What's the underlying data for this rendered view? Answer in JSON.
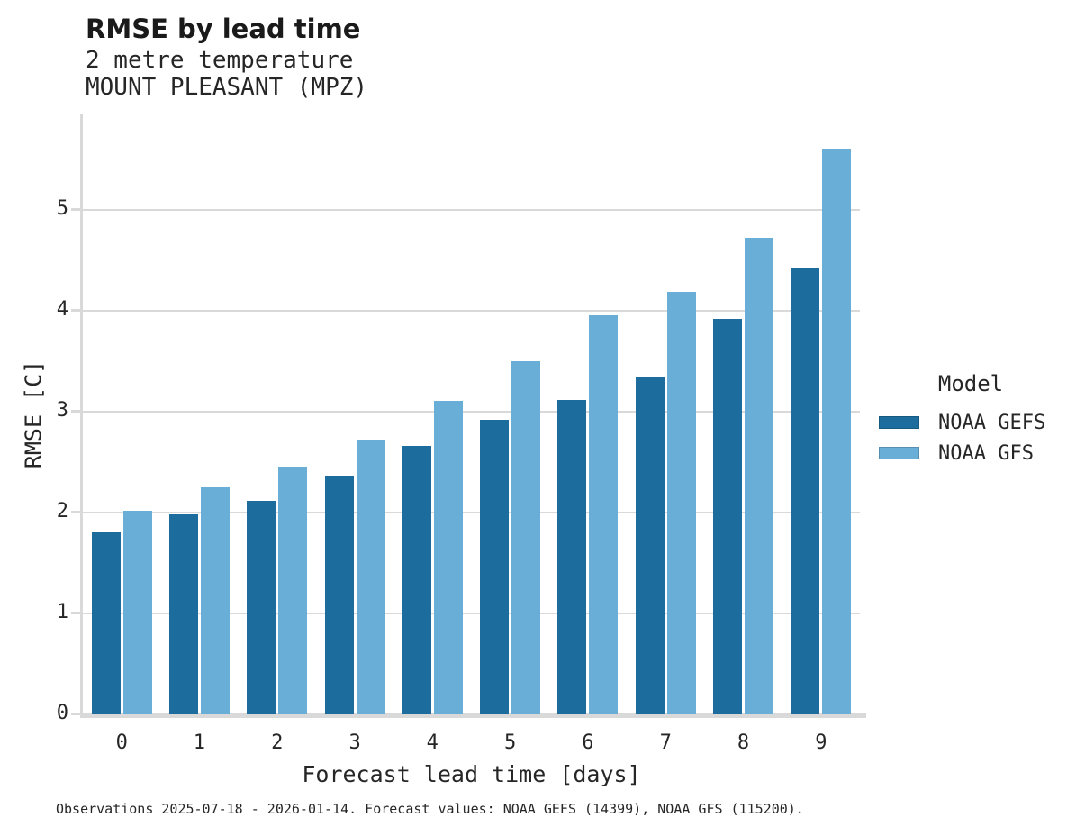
{
  "header": {
    "title": "RMSE by lead time",
    "subtitle_variable": "2 metre temperature",
    "subtitle_station": "MOUNT PLEASANT (MPZ)"
  },
  "chart_data": {
    "type": "bar",
    "title": "RMSE by lead time",
    "subtitle": [
      "2 metre temperature",
      "MOUNT PLEASANT (MPZ)"
    ],
    "categories": [
      "0",
      "1",
      "2",
      "3",
      "4",
      "5",
      "6",
      "7",
      "8",
      "9"
    ],
    "series": [
      {
        "name": "NOAA GEFS",
        "color": "#1c6d9e",
        "values": [
          1.8,
          1.98,
          2.12,
          2.37,
          2.66,
          2.92,
          3.12,
          3.34,
          3.92,
          4.43
        ]
      },
      {
        "name": "NOAA GFS",
        "color": "#69aed7",
        "values": [
          2.02,
          2.25,
          2.46,
          2.72,
          3.11,
          3.5,
          3.96,
          4.19,
          4.72,
          5.61
        ]
      }
    ],
    "xlabel": "Forecast lead time [days]",
    "ylabel": "RMSE [C]",
    "ylim": [
      0,
      5.95
    ],
    "yticks": [
      0,
      1,
      2,
      3,
      4,
      5
    ],
    "grid": "horizontal-major-only",
    "legend_position": "right",
    "legend_title": "Model"
  },
  "legend": {
    "title": "Model",
    "items": [
      {
        "label": "NOAA GEFS",
        "color": "#1c6d9e"
      },
      {
        "label": "NOAA GFS",
        "color": "#69aed7"
      }
    ]
  },
  "caption": "Observations 2025-07-18 - 2026-01-14. Forecast values: NOAA GEFS (14399), NOAA GFS (115200).",
  "colors": {
    "series_dark": "#1c6d9e",
    "series_light": "#69aed7",
    "grid": "#d9d9d9",
    "axis": "#d9d9d9",
    "text": "#262626",
    "background": "#ffffff"
  }
}
